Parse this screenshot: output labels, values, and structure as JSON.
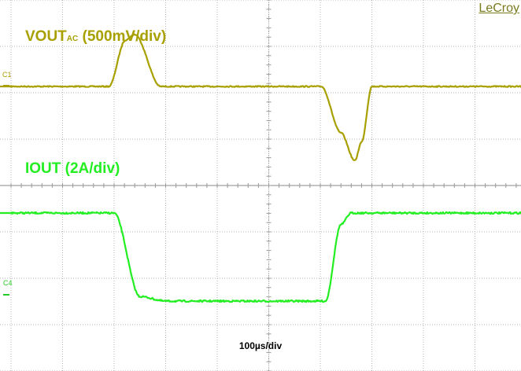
{
  "brand": "LeCroy",
  "chart_data": {
    "type": "line",
    "timebase_label": "100µs/div",
    "channels": [
      {
        "tag": "C1",
        "label_main": "VOUT",
        "label_sub": "AC",
        "label_scale": " (500mV/div)",
        "color": "#a8a000",
        "x_unit": "µs",
        "y_unit": "mV",
        "x": [
          0,
          190,
          222,
          240,
          290,
          602,
          640,
          667,
          680,
          700,
          1000
        ],
        "y": [
          0,
          0,
          500,
          560,
          0,
          0,
          -500,
          -800,
          -600,
          0,
          0
        ]
      },
      {
        "tag": "C4",
        "label": "IOUT (2A/div)",
        "color": "#22ee22",
        "x_unit": "µs",
        "y_unit": "A",
        "x": [
          0,
          200,
          250,
          300,
          610,
          640,
          660,
          1000
        ],
        "y": [
          0,
          0,
          -3.6,
          -3.8,
          -3.8,
          -0.5,
          0,
          0
        ]
      }
    ]
  }
}
